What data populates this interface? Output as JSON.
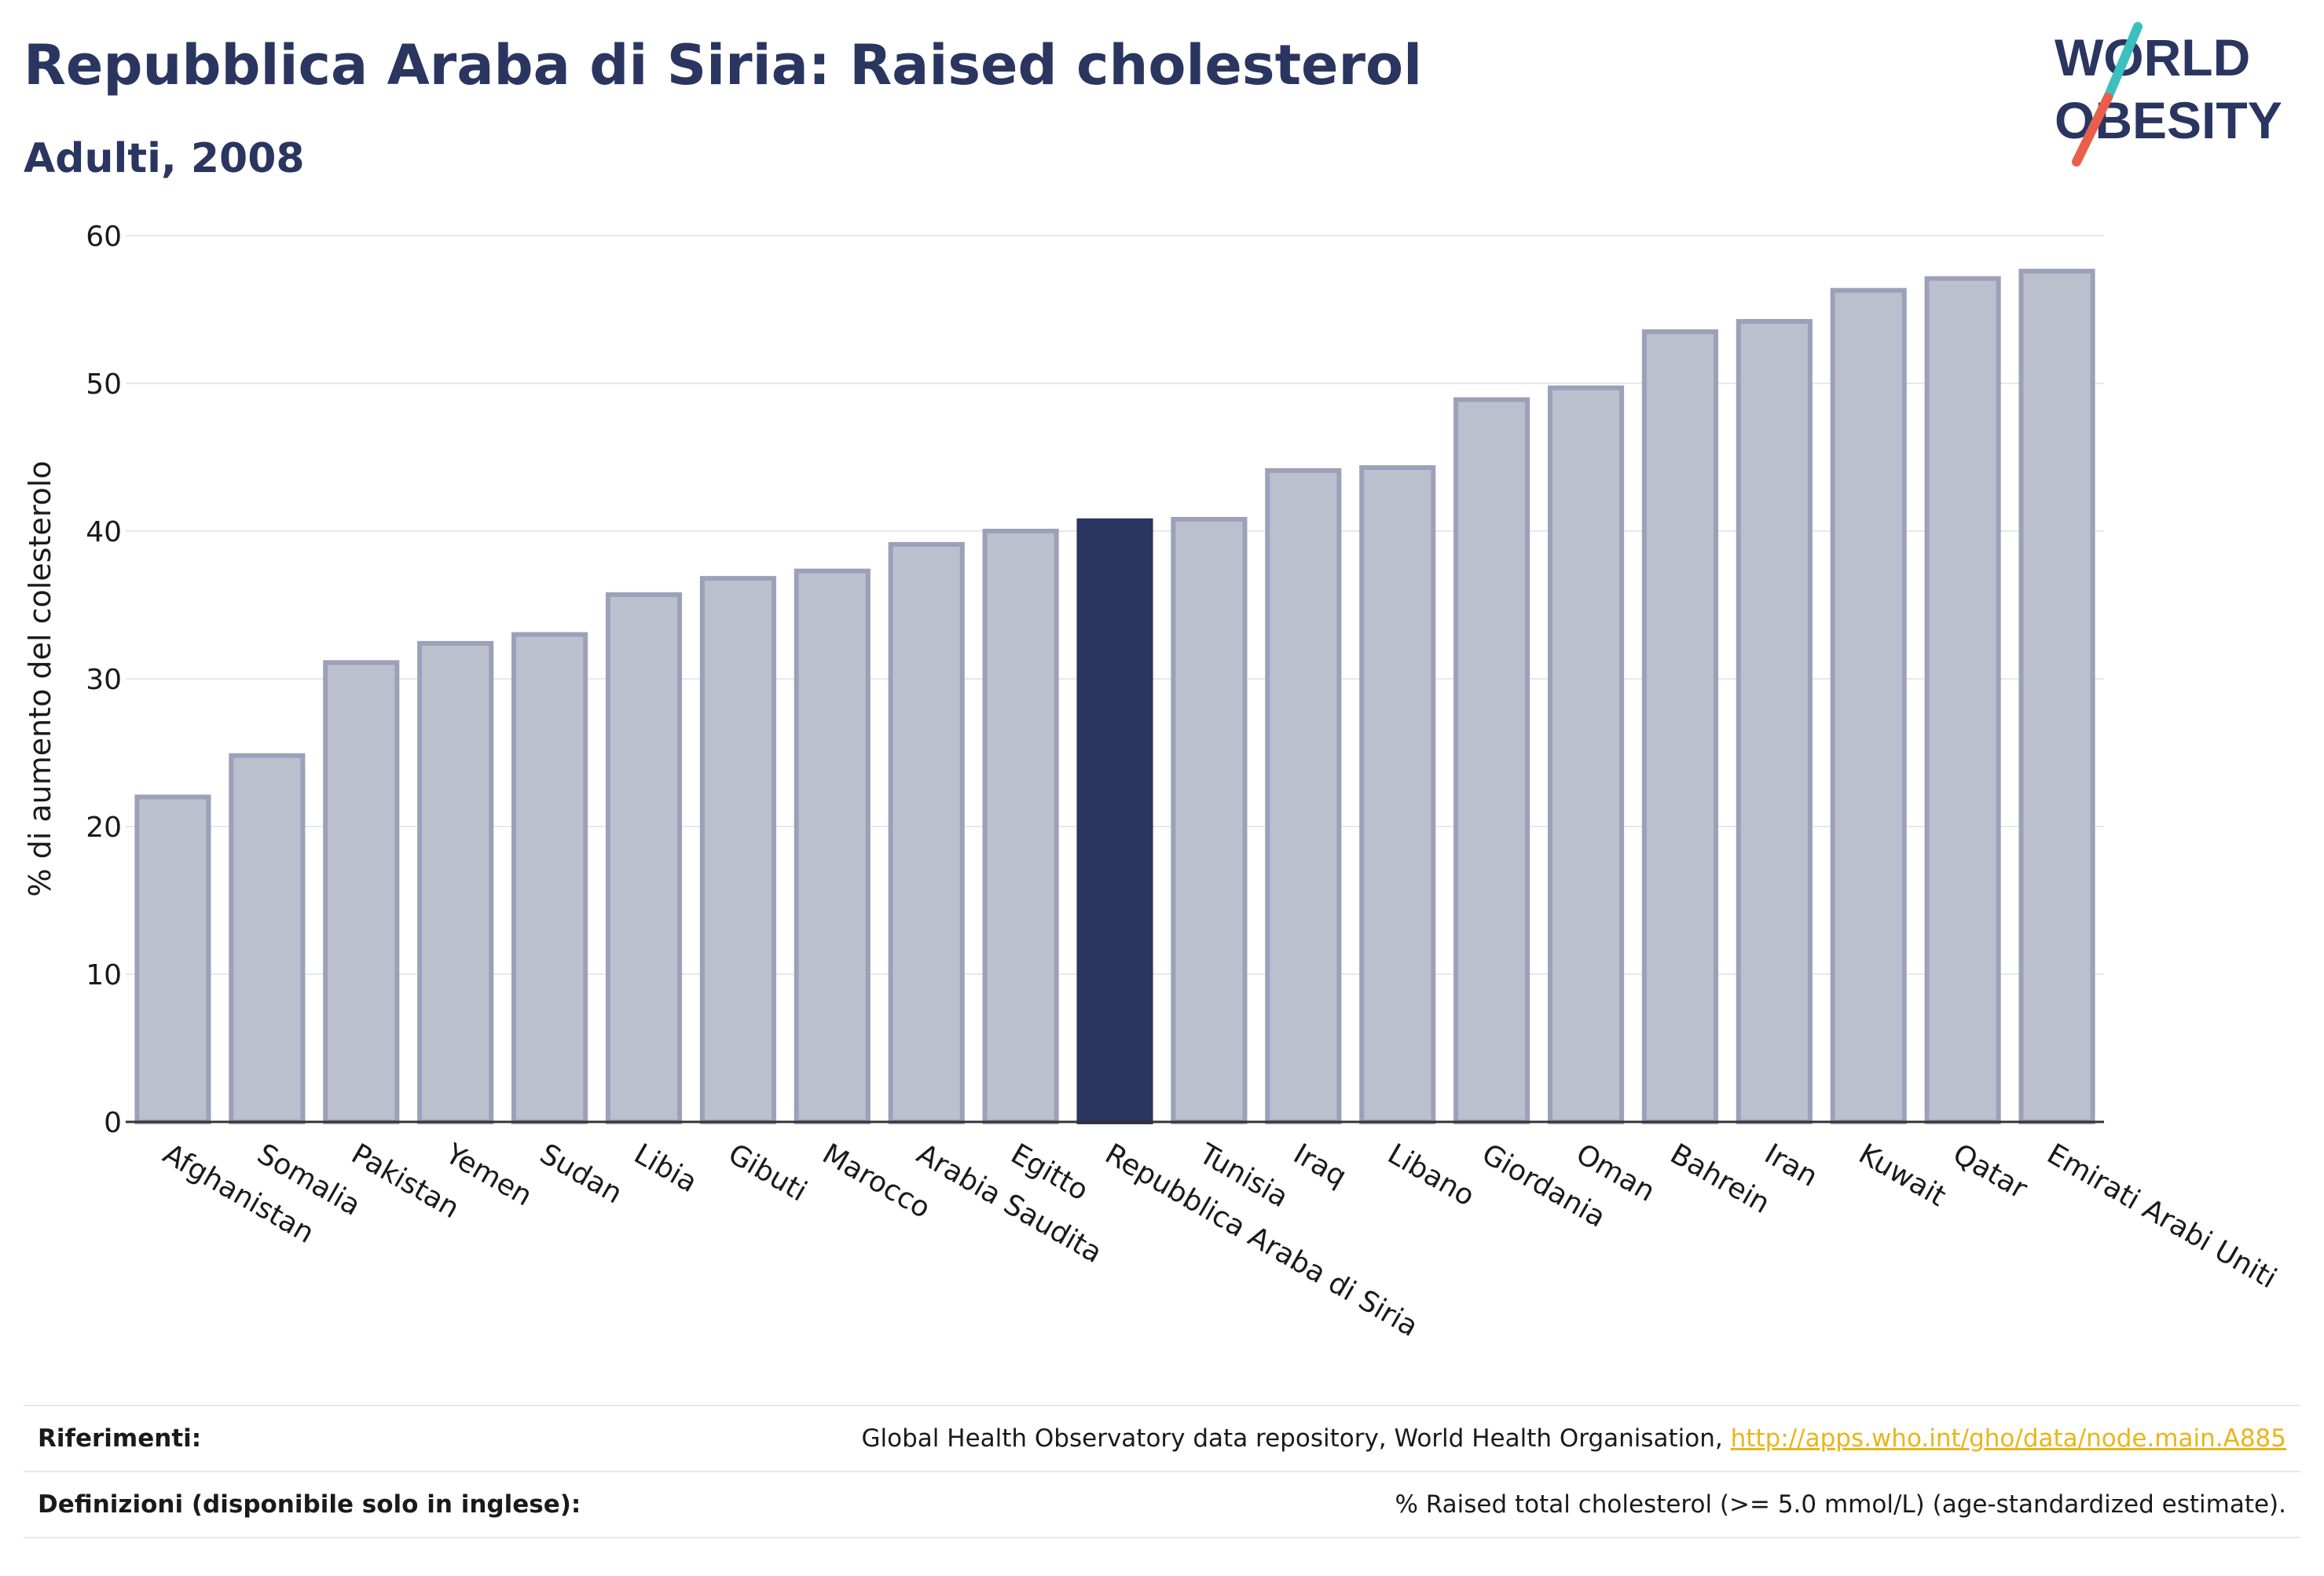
{
  "title": "Repubblica Araba di Siria: Raised cholesterol",
  "subtitle": "Adulti, 2008",
  "logo": {
    "line1": "WORLD",
    "line2": "OBESITY",
    "accent_teal": "#3cbfbf",
    "accent_red": "#e8604c"
  },
  "colors": {
    "bar": "#bcc0ce",
    "bar_border": "#9aa1b8",
    "highlight": "#2a3560",
    "grid": "#e6e8ee",
    "axis": "#333333"
  },
  "chart_data": {
    "type": "bar",
    "title": "Repubblica Araba di Siria: Raised cholesterol",
    "subtitle": "Adulti, 2008",
    "xlabel": "",
    "ylabel": "% di aumento del colesterolo",
    "ylim": [
      0,
      60
    ],
    "yticks": [
      0,
      10,
      20,
      30,
      40,
      50,
      60
    ],
    "grid": true,
    "highlight": "Repubblica Araba di Siria",
    "categories": [
      "Afghanistan",
      "Somalia",
      "Pakistan",
      "Yemen",
      "Sudan",
      "Libia",
      "Gibuti",
      "Marocco",
      "Arabia Saudita",
      "Egitto",
      "Repubblica Araba di Siria",
      "Tunisia",
      "Iraq",
      "Libano",
      "Giordania",
      "Oman",
      "Bahrein",
      "Iran",
      "Kuwait",
      "Qatar",
      "Emirati Arabi Uniti"
    ],
    "values": [
      22.0,
      24.8,
      31.1,
      32.4,
      33.0,
      35.7,
      36.8,
      37.3,
      39.1,
      40.0,
      40.7,
      40.8,
      44.1,
      44.3,
      48.9,
      49.7,
      53.5,
      54.2,
      56.3,
      57.1,
      57.6
    ]
  },
  "footer": {
    "references_label": "Riferimenti:",
    "references_text": "Global Health Observatory data repository, World Health Organisation, ",
    "references_link": "http://apps.who.int/gho/data/node.main.A885",
    "definitions_label": "Definizioni (disponibile solo in inglese):",
    "definitions_text": "% Raised total cholesterol (>= 5.0 mmol/L) (age-standardized estimate)."
  }
}
